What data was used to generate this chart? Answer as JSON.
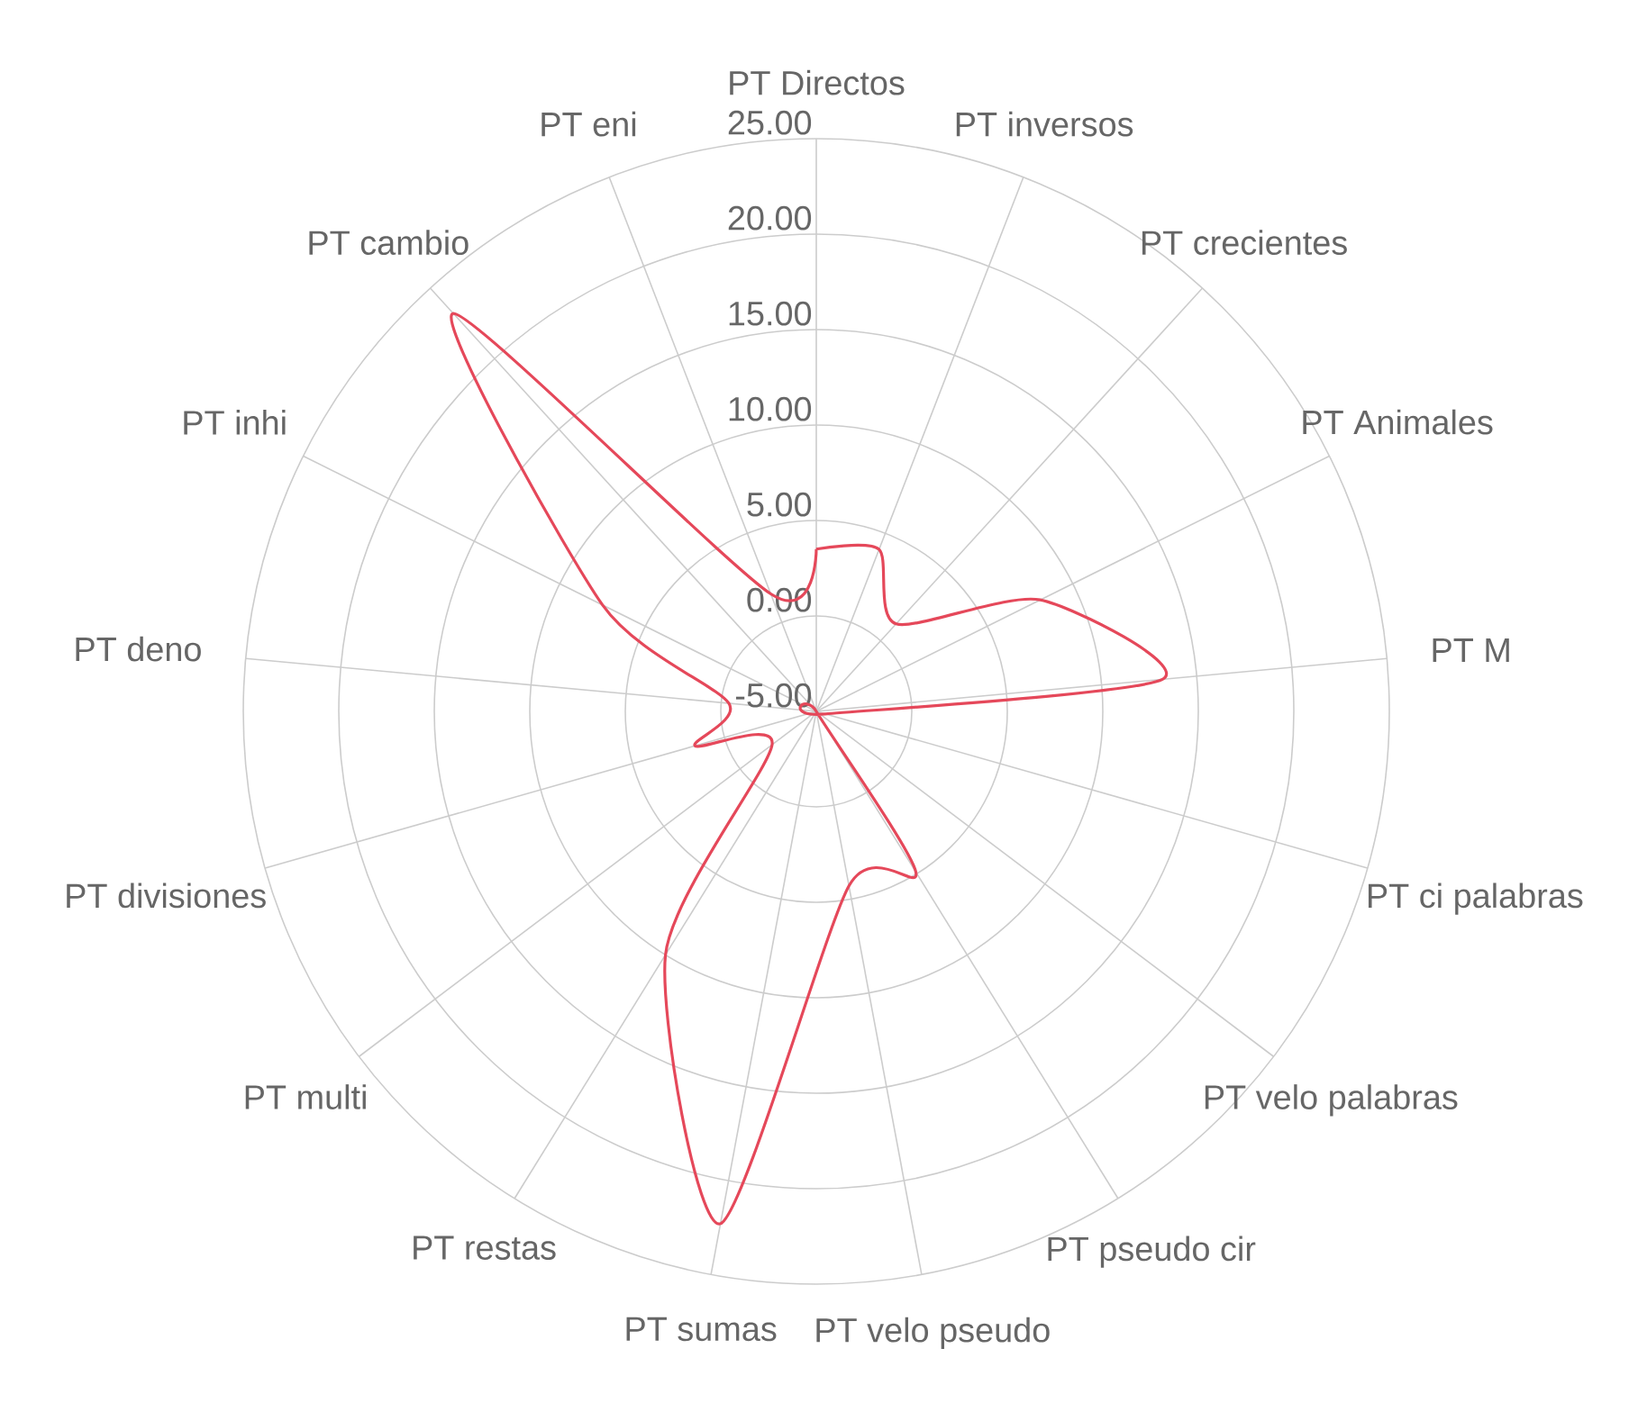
{
  "chart_data": {
    "type": "radar",
    "categories": [
      "PT Directos",
      "PT inversos",
      "PT crecientes",
      "PT Animales",
      "PT M",
      "PT ci palabras",
      "PT velo palabras",
      "PT pseudo cir",
      "PT velo pseudo",
      "PT sumas",
      "PT restas",
      "PT multi",
      "PT divisiones",
      "PT deno",
      "PT inhi",
      "PT cambio",
      "PT eni"
    ],
    "series": [
      {
        "color": "#e5485a",
        "values": [
          3.5,
          4.1,
          1.2,
          8.1,
          13.2,
          -4.5,
          -5,
          4.9,
          4.3,
          22.3,
          10,
          -2.1,
          1.6,
          -0.4,
          7.5,
          23.2,
          1.6
        ]
      }
    ],
    "ylim": [
      -5,
      25
    ],
    "yticks": [
      {
        "value": -5,
        "label": "-5.00"
      },
      {
        "value": 0,
        "label": "0.00"
      },
      {
        "value": 5,
        "label": "5.00"
      },
      {
        "value": 10,
        "label": "10.00"
      },
      {
        "value": 15,
        "label": "15.00"
      },
      {
        "value": 20,
        "label": "20.00"
      },
      {
        "value": 25,
        "label": "25.00"
      }
    ],
    "grid": true
  }
}
